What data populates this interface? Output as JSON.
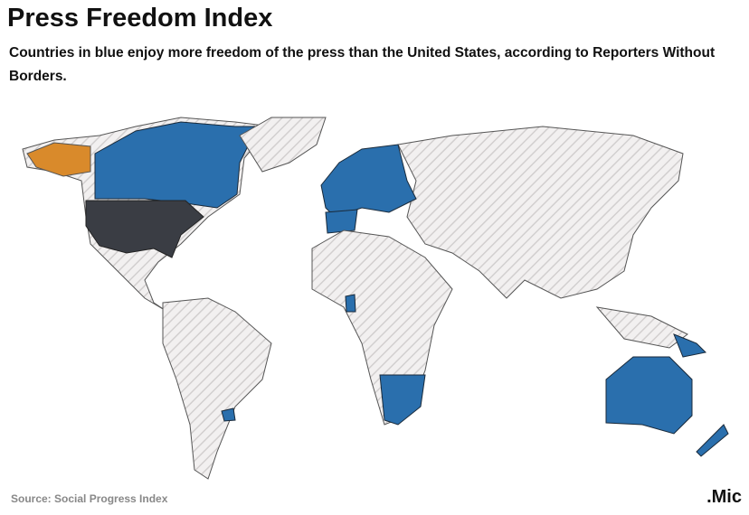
{
  "header": {
    "title": "Press Freedom Index",
    "subtitle": "Countries in blue enjoy more freedom of the press than the United States, according to Reporters Without Borders."
  },
  "footer": {
    "source": "Source: Social Progress Index",
    "logo": ".Mic"
  }
}
